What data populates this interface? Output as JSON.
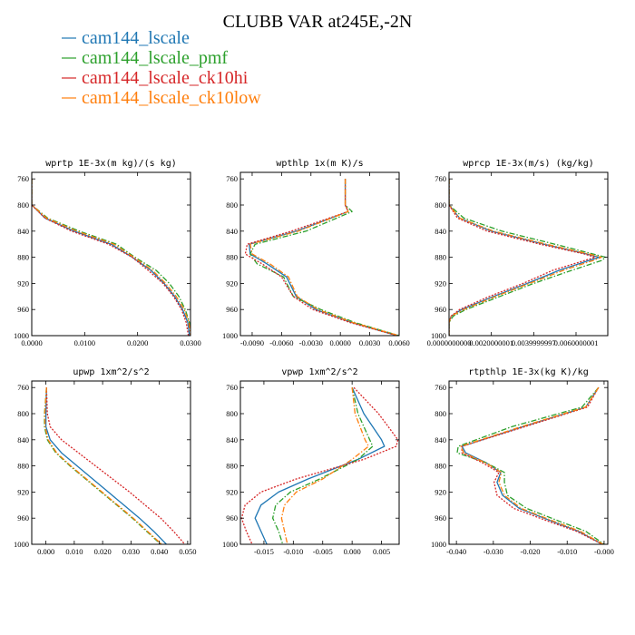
{
  "figure_title": "CLUBB VAR at245E,-2N",
  "colors": {
    "cam144_lscale": "#1f77b4",
    "cam144_lscale_pmf": "#2ca02c",
    "cam144_lscale_ck10hi": "#d62728",
    "cam144_lscale_ck10low": "#ff7f0e"
  },
  "legend": [
    {
      "label": "cam144_lscale",
      "color": "#1f77b4",
      "dash": "solid"
    },
    {
      "label": "cam144_lscale_pmf",
      "color": "#2ca02c",
      "dash": "dashdot"
    },
    {
      "label": "cam144_lscale_ck10hi",
      "color": "#d62728",
      "dash": "dotted"
    },
    {
      "label": "cam144_lscale_ck10low",
      "color": "#ff7f0e",
      "dash": "dashdot"
    }
  ],
  "chart_data": [
    {
      "type": "line",
      "title": "wprtp  1E-3x(m kg)/(s kg)",
      "xlim": [
        0,
        0.03
      ],
      "ylim": [
        1000,
        750
      ],
      "x_ticks": [
        0,
        0.01,
        0.02,
        0.03
      ],
      "x_tick_labels": [
        "0.0000",
        "0.0100",
        "0.0200",
        "0.0300"
      ],
      "y_ticks": [
        760,
        800,
        840,
        880,
        920,
        960,
        1000
      ],
      "y_tick_labels": [
        "760",
        "800",
        "840",
        "880",
        "920",
        "960",
        "1000"
      ],
      "y": [
        760,
        800,
        820,
        840,
        860,
        880,
        900,
        920,
        940,
        960,
        980,
        1000
      ],
      "series": [
        {
          "name": "cam144_lscale",
          "x": [
            0.0,
            0.0,
            0.0025,
            0.008,
            0.015,
            0.019,
            0.0225,
            0.025,
            0.027,
            0.0285,
            0.0295,
            0.0298
          ]
        },
        {
          "name": "cam144_lscale_pmf",
          "x": [
            0.0,
            0.0,
            0.003,
            0.009,
            0.016,
            0.0195,
            0.0235,
            0.026,
            0.0278,
            0.029,
            0.0298,
            0.0302
          ]
        },
        {
          "name": "cam144_lscale_ck10hi",
          "x": [
            0.0,
            0.0,
            0.0025,
            0.0075,
            0.0145,
            0.019,
            0.022,
            0.0248,
            0.0268,
            0.0283,
            0.0292,
            0.0296
          ]
        },
        {
          "name": "cam144_lscale_ck10low",
          "x": [
            0.0,
            0.0,
            0.0028,
            0.0085,
            0.0155,
            0.0193,
            0.0228,
            0.0253,
            0.0273,
            0.0288,
            0.0297,
            0.03
          ]
        }
      ]
    },
    {
      "type": "line",
      "title": "wpthlp  1x(m K)/s",
      "xlim": [
        -0.0102,
        0.006
      ],
      "ylim": [
        1000,
        750
      ],
      "x_ticks": [
        -0.009,
        -0.006,
        -0.003,
        0,
        0.003,
        0.006
      ],
      "x_tick_labels": [
        "-0.0090",
        "-0.0060",
        "-0.0030",
        "0.0000",
        "0.0030",
        "0.0060"
      ],
      "y_ticks": [
        760,
        800,
        840,
        880,
        920,
        960,
        1000
      ],
      "y_tick_labels": [
        "760",
        "800",
        "840",
        "880",
        "920",
        "960",
        "1000"
      ],
      "y": [
        760,
        800,
        810,
        840,
        860,
        875,
        890,
        910,
        940,
        960,
        980,
        1000
      ],
      "series": [
        {
          "name": "cam144_lscale",
          "x": [
            0.0005,
            0.0005,
            0.0008,
            -0.0045,
            -0.0093,
            -0.0092,
            -0.0075,
            -0.0055,
            -0.0045,
            -0.0025,
            0.0012,
            0.0058
          ]
        },
        {
          "name": "cam144_lscale_pmf",
          "x": [
            0.0005,
            0.0005,
            0.0012,
            -0.0035,
            -0.0087,
            -0.0092,
            -0.0085,
            -0.0058,
            -0.0048,
            -0.002,
            0.0015,
            0.006
          ]
        },
        {
          "name": "cam144_lscale_ck10hi",
          "x": [
            0.0005,
            0.0005,
            0.0008,
            -0.005,
            -0.0095,
            -0.0097,
            -0.008,
            -0.006,
            -0.0048,
            -0.0028,
            0.001,
            0.0058
          ]
        },
        {
          "name": "cam144_lscale_ck10low",
          "x": [
            0.0005,
            0.0005,
            0.0008,
            -0.0043,
            -0.0092,
            -0.009,
            -0.0072,
            -0.0053,
            -0.0044,
            -0.0023,
            0.0013,
            0.006
          ]
        }
      ]
    },
    {
      "type": "line",
      "title": "wprcp  1E-3x(m/s) (kg/kg)",
      "xlim": [
        0,
        0.0075
      ],
      "ylim": [
        1000,
        750
      ],
      "x_ticks": [
        0,
        0.002,
        0.004,
        0.006
      ],
      "x_tick_labels": [
        "0.0000000000",
        "0.0020000001",
        "0.0039999997",
        "0.0060000001"
      ],
      "y_ticks": [
        760,
        800,
        840,
        880,
        920,
        960,
        1000
      ],
      "y_tick_labels": [
        "760",
        "800",
        "840",
        "880",
        "920",
        "960",
        "1000"
      ],
      "y": [
        760,
        800,
        820,
        840,
        860,
        875,
        880,
        885,
        900,
        920,
        940,
        960,
        970,
        980,
        1000
      ],
      "series": [
        {
          "name": "cam144_lscale",
          "x": [
            0.0,
            0.0,
            0.0005,
            0.002,
            0.0045,
            0.0065,
            0.0071,
            0.0066,
            0.0052,
            0.0037,
            0.0021,
            0.0006,
            0.0001,
            0.0,
            0.0
          ]
        },
        {
          "name": "cam144_lscale_pmf",
          "x": [
            0.0,
            0.0,
            0.0007,
            0.0025,
            0.005,
            0.0068,
            0.0074,
            0.0072,
            0.0058,
            0.004,
            0.0024,
            0.0008,
            0.0002,
            0.0,
            0.0
          ]
        },
        {
          "name": "cam144_lscale_ck10hi",
          "x": [
            0.0,
            0.0,
            0.0004,
            0.0018,
            0.0043,
            0.0064,
            0.0069,
            0.0064,
            0.0049,
            0.0035,
            0.0019,
            0.0005,
            0.0001,
            0.0,
            0.0
          ]
        },
        {
          "name": "cam144_lscale_ck10low",
          "x": [
            0.0,
            0.0,
            0.0005,
            0.0021,
            0.0046,
            0.0066,
            0.0072,
            0.0068,
            0.0054,
            0.0038,
            0.0022,
            0.0007,
            0.0001,
            0.0,
            0.0
          ]
        }
      ]
    },
    {
      "type": "line",
      "title": "upwp  1xm^2/s^2",
      "xlim": [
        -0.005,
        0.051
      ],
      "ylim": [
        1000,
        750
      ],
      "x_ticks": [
        0,
        0.01,
        0.02,
        0.03,
        0.04,
        0.05
      ],
      "x_tick_labels": [
        "0.000",
        "0.010",
        "0.020",
        "0.030",
        "0.040",
        "0.050"
      ],
      "y_ticks": [
        760,
        800,
        840,
        880,
        920,
        960,
        1000
      ],
      "y_tick_labels": [
        "760",
        "800",
        "840",
        "880",
        "920",
        "960",
        "1000"
      ],
      "y": [
        760,
        800,
        820,
        840,
        860,
        880,
        900,
        920,
        940,
        960,
        980,
        1000
      ],
      "series": [
        {
          "name": "cam144_lscale",
          "x": [
            0.0002,
            0.0,
            0.0,
            0.0015,
            0.0055,
            0.011,
            0.0165,
            0.022,
            0.0275,
            0.033,
            0.038,
            0.0425
          ]
        },
        {
          "name": "cam144_lscale_pmf",
          "x": [
            0.0002,
            -0.0005,
            -0.0005,
            0.0005,
            0.0035,
            0.0085,
            0.014,
            0.0195,
            0.025,
            0.0305,
            0.0355,
            0.0405
          ]
        },
        {
          "name": "cam144_lscale_ck10hi",
          "x": [
            0.0002,
            0.0005,
            0.0015,
            0.0055,
            0.0115,
            0.0175,
            0.0235,
            0.0295,
            0.035,
            0.0405,
            0.045,
            0.049
          ]
        },
        {
          "name": "cam144_lscale_ck10low",
          "x": [
            0.0002,
            -0.0004,
            -0.0003,
            0.0008,
            0.0038,
            0.0088,
            0.0143,
            0.0198,
            0.0253,
            0.0308,
            0.0358,
            0.0408
          ]
        }
      ]
    },
    {
      "type": "line",
      "title": "vpwp  1xm^2/s^2",
      "xlim": [
        -0.019,
        0.008
      ],
      "ylim": [
        1000,
        750
      ],
      "x_ticks": [
        -0.015,
        -0.01,
        -0.005,
        0,
        0.005
      ],
      "x_tick_labels": [
        "-0.015",
        "-0.010",
        "-0.005",
        "0.000",
        "0.005"
      ],
      "y_ticks": [
        760,
        800,
        840,
        880,
        920,
        960,
        1000
      ],
      "y_tick_labels": [
        "760",
        "800",
        "840",
        "880",
        "920",
        "960",
        "1000"
      ],
      "y": [
        760,
        800,
        840,
        850,
        870,
        900,
        920,
        940,
        960,
        980,
        1000
      ],
      "series": [
        {
          "name": "cam144_lscale",
          "x": [
            0.0,
            0.002,
            0.005,
            0.0055,
            0.001,
            -0.0075,
            -0.0125,
            -0.0155,
            -0.0165,
            -0.0155,
            -0.0145
          ]
        },
        {
          "name": "cam144_lscale_pmf",
          "x": [
            0.0,
            0.001,
            0.003,
            0.0035,
            0.001,
            -0.0055,
            -0.0105,
            -0.013,
            -0.0135,
            -0.0125,
            -0.0118
          ]
        },
        {
          "name": "cam144_lscale_ck10hi",
          "x": [
            0.0003,
            0.0045,
            0.0078,
            0.0075,
            0.002,
            -0.0095,
            -0.0155,
            -0.0182,
            -0.0188,
            -0.018,
            -0.017
          ]
        },
        {
          "name": "cam144_lscale_ck10low",
          "x": [
            0.0,
            0.0005,
            0.0022,
            0.0028,
            0.0,
            -0.005,
            -0.0095,
            -0.0115,
            -0.012,
            -0.0115,
            -0.011
          ]
        }
      ]
    },
    {
      "type": "line",
      "title": "rtpthlp  1E-3x(kg K)/kg",
      "xlim": [
        -0.042,
        0.001
      ],
      "ylim": [
        1000,
        750
      ],
      "x_ticks": [
        -0.04,
        -0.03,
        -0.02,
        -0.01,
        0
      ],
      "x_tick_labels": [
        "-0.040",
        "-0.030",
        "-0.020",
        "-0.010",
        "-0.000"
      ],
      "y_ticks": [
        760,
        800,
        840,
        880,
        920,
        960,
        1000
      ],
      "y_tick_labels": [
        "760",
        "800",
        "840",
        "880",
        "920",
        "960",
        "1000"
      ],
      "y": [
        760,
        790,
        820,
        850,
        860,
        875,
        890,
        905,
        925,
        945,
        965,
        980,
        1000
      ],
      "series": [
        {
          "name": "cam144_lscale",
          "x": [
            -0.0015,
            -0.005,
            -0.022,
            -0.0385,
            -0.0375,
            -0.032,
            -0.028,
            -0.029,
            -0.0275,
            -0.023,
            -0.014,
            -0.007,
            -0.0005
          ]
        },
        {
          "name": "cam144_lscale_pmf",
          "x": [
            -0.0015,
            -0.006,
            -0.025,
            -0.0395,
            -0.0398,
            -0.032,
            -0.027,
            -0.027,
            -0.0262,
            -0.021,
            -0.012,
            -0.005,
            0.0
          ]
        },
        {
          "name": "cam144_lscale_ck10hi",
          "x": [
            -0.0015,
            -0.0045,
            -0.0215,
            -0.0385,
            -0.0385,
            -0.033,
            -0.0285,
            -0.0298,
            -0.029,
            -0.0245,
            -0.015,
            -0.0075,
            -0.0005
          ]
        },
        {
          "name": "cam144_lscale_ck10low",
          "x": [
            -0.0015,
            -0.005,
            -0.0225,
            -0.0388,
            -0.038,
            -0.0322,
            -0.0278,
            -0.0285,
            -0.027,
            -0.0225,
            -0.0135,
            -0.0065,
            -0.0003
          ]
        }
      ]
    }
  ]
}
